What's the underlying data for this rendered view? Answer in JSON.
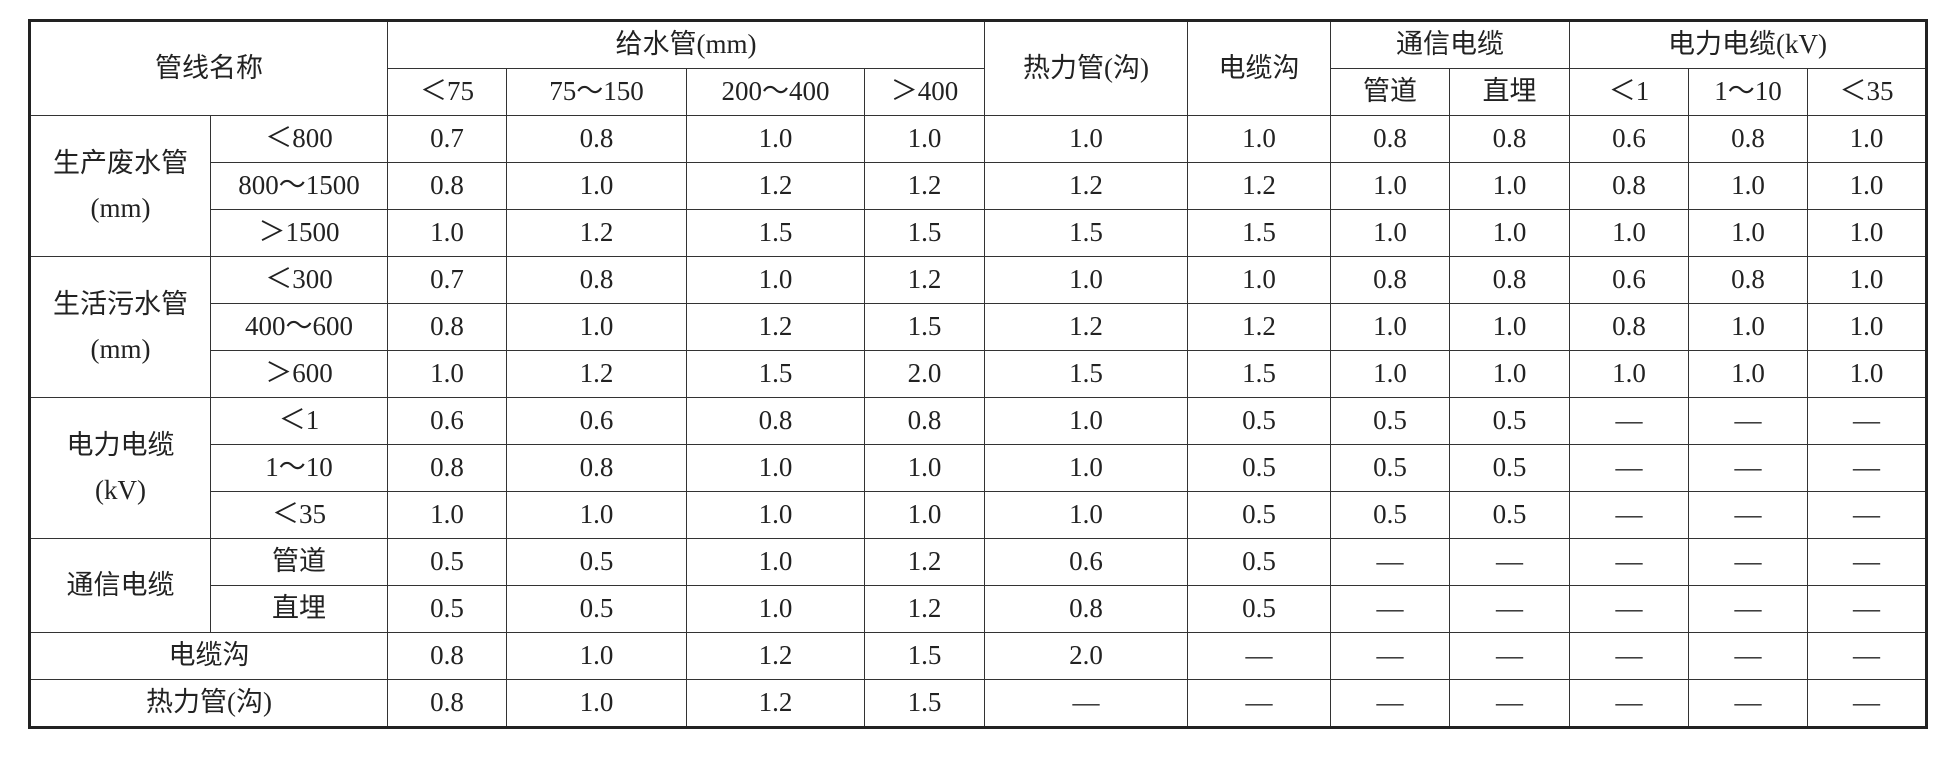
{
  "header": {
    "name": "管线名称",
    "water": "给水管(mm)",
    "water_sizes": [
      "＜75",
      "75～150",
      "200～400",
      "＞400"
    ],
    "heat": "热力管(沟)",
    "trench": "电缆沟",
    "telecom": "通信电缆",
    "telecom_types": [
      "管道",
      "直埋"
    ],
    "power": "电力电缆(kV)",
    "power_levels": [
      "＜1",
      "1～10",
      "＜35"
    ]
  },
  "groups": [
    {
      "label": [
        "生产废水管",
        "(mm)"
      ],
      "rows": [
        {
          "sub": "＜800",
          "cells": [
            "0.7",
            "0.8",
            "1.0",
            "1.0",
            "1.0",
            "1.0",
            "0.8",
            "0.8",
            "0.6",
            "0.8",
            "1.0"
          ]
        },
        {
          "sub": "800～1500",
          "cells": [
            "0.8",
            "1.0",
            "1.2",
            "1.2",
            "1.2",
            "1.2",
            "1.0",
            "1.0",
            "0.8",
            "1.0",
            "1.0"
          ]
        },
        {
          "sub": "＞1500",
          "cells": [
            "1.0",
            "1.2",
            "1.5",
            "1.5",
            "1.5",
            "1.5",
            "1.0",
            "1.0",
            "1.0",
            "1.0",
            "1.0"
          ]
        }
      ]
    },
    {
      "label": [
        "生活污水管",
        "(mm)"
      ],
      "rows": [
        {
          "sub": "＜300",
          "cells": [
            "0.7",
            "0.8",
            "1.0",
            "1.2",
            "1.0",
            "1.0",
            "0.8",
            "0.8",
            "0.6",
            "0.8",
            "1.0"
          ]
        },
        {
          "sub": "400～600",
          "cells": [
            "0.8",
            "1.0",
            "1.2",
            "1.5",
            "1.2",
            "1.2",
            "1.0",
            "1.0",
            "0.8",
            "1.0",
            "1.0"
          ]
        },
        {
          "sub": "＞600",
          "cells": [
            "1.0",
            "1.2",
            "1.5",
            "2.0",
            "1.5",
            "1.5",
            "1.0",
            "1.0",
            "1.0",
            "1.0",
            "1.0"
          ]
        }
      ]
    },
    {
      "label": [
        "电力电缆",
        "(kV)"
      ],
      "rows": [
        {
          "sub": "＜1",
          "cells": [
            "0.6",
            "0.6",
            "0.8",
            "0.8",
            "1.0",
            "0.5",
            "0.5",
            "0.5",
            "—",
            "—",
            "—"
          ]
        },
        {
          "sub": "1～10",
          "cells": [
            "0.8",
            "0.8",
            "1.0",
            "1.0",
            "1.0",
            "0.5",
            "0.5",
            "0.5",
            "—",
            "—",
            "—"
          ]
        },
        {
          "sub": "＜35",
          "cells": [
            "1.0",
            "1.0",
            "1.0",
            "1.0",
            "1.0",
            "0.5",
            "0.5",
            "0.5",
            "—",
            "—",
            "—"
          ]
        }
      ]
    },
    {
      "label": [
        "通信电缆"
      ],
      "rows": [
        {
          "sub": "管道",
          "cells": [
            "0.5",
            "0.5",
            "1.0",
            "1.2",
            "0.6",
            "0.5",
            "—",
            "—",
            "—",
            "—",
            "—"
          ]
        },
        {
          "sub": "直埋",
          "cells": [
            "0.5",
            "0.5",
            "1.0",
            "1.2",
            "0.8",
            "0.5",
            "—",
            "—",
            "—",
            "—",
            "—"
          ]
        }
      ]
    }
  ],
  "single_rows": [
    {
      "label": "电缆沟",
      "cells": [
        "0.8",
        "1.0",
        "1.2",
        "1.5",
        "2.0",
        "—",
        "—",
        "—",
        "—",
        "—",
        "—"
      ]
    },
    {
      "label": "热力管(沟)",
      "cells": [
        "0.8",
        "1.0",
        "1.2",
        "1.5",
        "—",
        "—",
        "—",
        "—",
        "—",
        "—",
        "—"
      ]
    }
  ]
}
